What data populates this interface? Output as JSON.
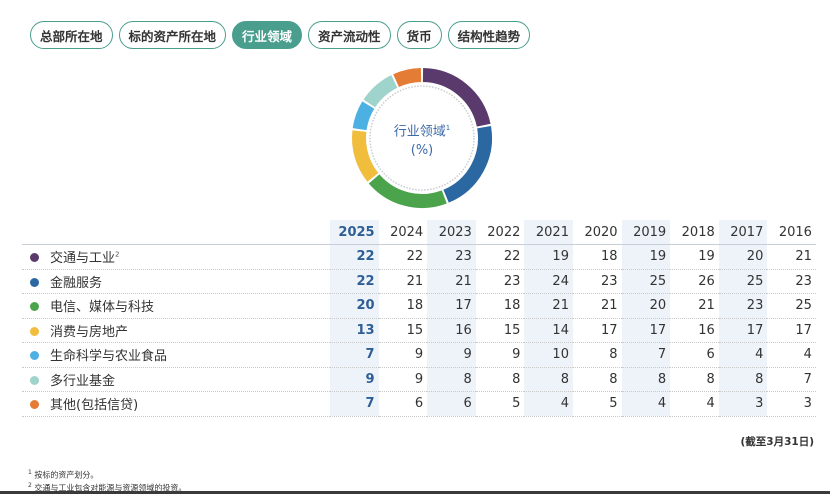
{
  "tabs": [
    {
      "label": "总部所在地",
      "active": false
    },
    {
      "label": "标的资产所在地",
      "active": false
    },
    {
      "label": "行业领域",
      "active": true
    },
    {
      "label": "资产流动性",
      "active": false
    },
    {
      "label": "货币",
      "active": false
    },
    {
      "label": "结构性趋势",
      "active": false
    }
  ],
  "donut": {
    "title": "行业领域",
    "title_sup": "1",
    "unit": "(%)"
  },
  "chart_data": {
    "type": "pie",
    "title": "行业领域 (%)",
    "years": [
      "2025",
      "2024",
      "2023",
      "2022",
      "2021",
      "2020",
      "2019",
      "2018",
      "2017",
      "2016"
    ],
    "current_year": "2025",
    "series": [
      {
        "name": "交通与工业",
        "note": "2",
        "color": "#5a3a6c",
        "values": [
          22,
          22,
          23,
          22,
          19,
          18,
          19,
          19,
          20,
          21
        ]
      },
      {
        "name": "金融服务",
        "color": "#2b67a1",
        "values": [
          22,
          21,
          21,
          23,
          24,
          23,
          25,
          26,
          25,
          23
        ]
      },
      {
        "name": "电信、媒体与科技",
        "color": "#4ba34b",
        "values": [
          20,
          18,
          17,
          18,
          21,
          21,
          20,
          21,
          23,
          25
        ]
      },
      {
        "name": "消费与房地产",
        "color": "#f1bd3d",
        "values": [
          13,
          15,
          16,
          15,
          14,
          17,
          17,
          16,
          17,
          17
        ]
      },
      {
        "name": "生命科学与农业食品",
        "color": "#4cb0e2",
        "values": [
          7,
          9,
          9,
          9,
          10,
          8,
          7,
          6,
          4,
          4
        ]
      },
      {
        "name": "多行业基金",
        "color": "#9fd4cc",
        "values": [
          9,
          9,
          8,
          8,
          8,
          8,
          8,
          8,
          8,
          7
        ]
      },
      {
        "name": "其他(包括信贷)",
        "color": "#e47c35",
        "values": [
          7,
          6,
          6,
          5,
          4,
          5,
          4,
          4,
          3,
          3
        ]
      }
    ]
  },
  "as_of": "(截至3月31日)",
  "footnotes": [
    {
      "mark": "1",
      "text": "按标的资产划分。"
    },
    {
      "mark": "2",
      "text": "交通与工业包含对能源与资源领域的投资。"
    }
  ]
}
